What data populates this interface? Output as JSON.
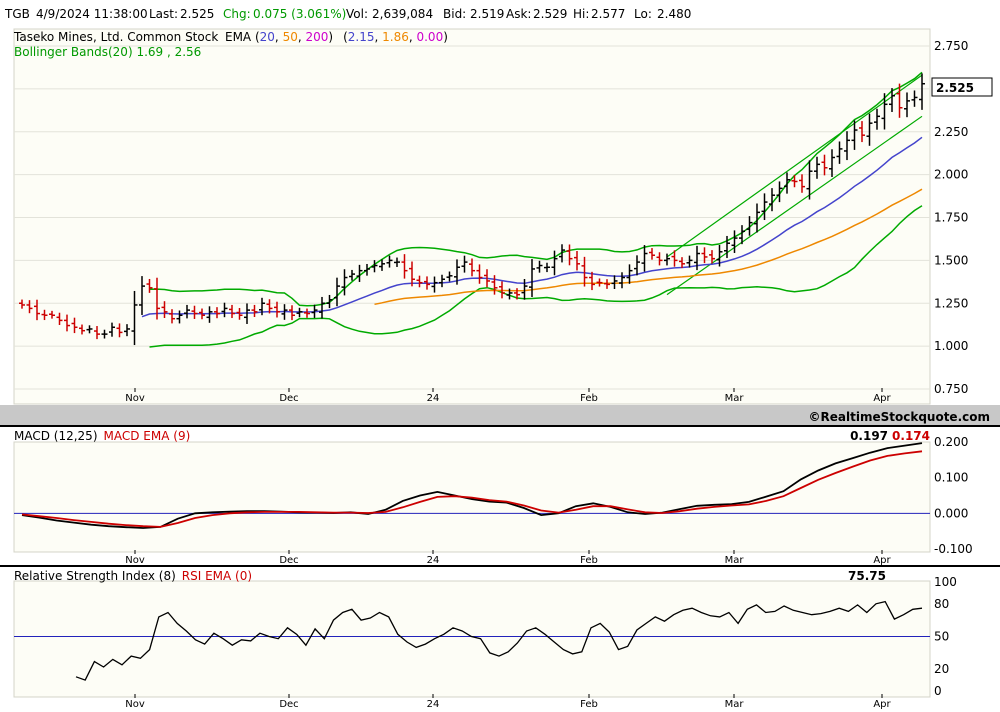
{
  "header": {
    "symbol": "TGB",
    "datetime": "4/9/2024 11:38:00",
    "last_label": "Last:",
    "last_value": "2.525",
    "chg_label": "Chg:",
    "chg_value": "0.075 (3.061%)",
    "vol_label": "Vol:",
    "vol_value": "2,639,084",
    "bid_label": "Bid:",
    "bid_value": "2.519",
    "ask_label": "Ask:",
    "ask_value": "2.529",
    "hi_label": "Hi:",
    "hi_value": "2.577",
    "lo_label": "Lo:",
    "lo_value": "2.480"
  },
  "price_panel": {
    "company": "Taseko Mines, Ltd. Common Stock",
    "ema_label": "EMA (",
    "ema_periods": [
      "20",
      "50",
      "200"
    ],
    "ema_close": ")",
    "ema_values_open": "(",
    "ema_values": [
      "2.15",
      "1.86",
      "0.00"
    ],
    "ema_values_close": ")",
    "bollinger_label": "Bollinger Bands(20) 1.69 , 2.56",
    "last_price_tag": "2.525",
    "yticks": [
      "2.750",
      "2.500",
      "2.250",
      "2.000",
      "1.750",
      "1.500",
      "1.250",
      "1.000",
      "0.750"
    ]
  },
  "xticks": [
    "Nov",
    "Dec",
    "24",
    "Feb",
    "Mar",
    "Apr"
  ],
  "copyright": "©RealtimeStockquote.com",
  "macd_panel": {
    "label": "MACD (12,25)",
    "ema_label": "MACD EMA (9)",
    "value": "0.197",
    "ema_value": "0.174",
    "yticks": [
      "0.200",
      "0.100",
      "0.000",
      "-0.100"
    ]
  },
  "rsi_panel": {
    "label": "Relative Strength Index (8)",
    "ema_label": "RSI EMA (0)",
    "value": "75.75",
    "yticks": [
      "100",
      "80",
      "50",
      "20",
      "0"
    ]
  },
  "colors": {
    "up": "#000000",
    "down": "#cc0000",
    "ema20": "#4444cc",
    "ema50": "#ee8800",
    "ema200": "#cc00cc",
    "bollinger": "#00aa00",
    "macd": "#000000",
    "macd_ema": "#cc0000",
    "rsi": "#000000",
    "ref_line": "#2222bb",
    "panel_bg": "#fdfdf6",
    "separator": "#c8c8c8"
  },
  "chart_data": [
    {
      "type": "candlestick",
      "title": "Taseko Mines, Ltd. Common Stock",
      "x_ticks": [
        "Nov",
        "Dec",
        "24",
        "Feb",
        "Mar",
        "Apr"
      ],
      "ylim": [
        0.75,
        2.75
      ],
      "close": [
        1.24,
        1.22,
        1.19,
        1.18,
        1.18,
        1.15,
        1.12,
        1.11,
        1.09,
        1.1,
        1.07,
        1.07,
        1.11,
        1.08,
        1.1,
        1.24,
        1.35,
        1.34,
        1.22,
        1.2,
        1.16,
        1.18,
        1.21,
        1.19,
        1.18,
        1.2,
        1.19,
        1.22,
        1.19,
        1.18,
        1.21,
        1.2,
        1.25,
        1.22,
        1.2,
        1.21,
        1.18,
        1.2,
        1.19,
        1.21,
        1.25,
        1.27,
        1.35,
        1.4,
        1.42,
        1.44,
        1.45,
        1.47,
        1.48,
        1.5,
        1.49,
        1.44,
        1.39,
        1.37,
        1.36,
        1.37,
        1.39,
        1.41,
        1.46,
        1.49,
        1.44,
        1.4,
        1.38,
        1.34,
        1.31,
        1.31,
        1.3,
        1.35,
        1.45,
        1.47,
        1.46,
        1.51,
        1.56,
        1.51,
        1.48,
        1.4,
        1.36,
        1.37,
        1.36,
        1.38,
        1.4,
        1.44,
        1.49,
        1.54,
        1.53,
        1.5,
        1.51,
        1.5,
        1.48,
        1.5,
        1.54,
        1.52,
        1.51,
        1.55,
        1.6,
        1.63,
        1.67,
        1.72,
        1.78,
        1.84,
        1.88,
        1.92,
        1.97,
        1.96,
        1.93,
        2.02,
        2.06,
        2.04,
        2.1,
        2.15,
        2.2,
        2.26,
        2.23,
        2.3,
        2.34,
        2.41,
        2.46,
        2.39,
        2.43,
        2.45,
        2.53
      ],
      "ema": [
        {
          "period": "20",
          "current": "2.15"
        },
        {
          "period": "50",
          "current": "1.86"
        },
        {
          "period": "200",
          "current": "0.00"
        }
      ],
      "bollinger": {
        "label": "Bollinger Bands(20)",
        "lower": "1.69",
        "upper": "2.56"
      },
      "last": 2.525
    },
    {
      "type": "line",
      "title": "MACD (12,25)",
      "ylim": [
        -0.1,
        0.2
      ],
      "series": [
        {
          "name": "MACD (12,25)",
          "values": [
            -0.005,
            -0.012,
            -0.02,
            -0.026,
            -0.032,
            -0.036,
            -0.039,
            -0.041,
            -0.038,
            -0.015,
            0.0,
            0.003,
            0.005,
            0.006,
            0.006,
            0.005,
            0.003,
            0.002,
            0.001,
            0.003,
            -0.002,
            0.01,
            0.035,
            0.05,
            0.06,
            0.05,
            0.04,
            0.033,
            0.03,
            0.015,
            -0.005,
            0.0,
            0.02,
            0.028,
            0.018,
            0.003,
            -0.002,
            0.002,
            0.012,
            0.021,
            0.024,
            0.026,
            0.032,
            0.047,
            0.062,
            0.095,
            0.12,
            0.14,
            0.155,
            0.17,
            0.183,
            0.19,
            0.197
          ]
        },
        {
          "name": "MACD EMA (9)",
          "values": [
            -0.003,
            -0.008,
            -0.013,
            -0.019,
            -0.024,
            -0.029,
            -0.033,
            -0.036,
            -0.038,
            -0.027,
            -0.013,
            -0.005,
            0.0,
            0.003,
            0.004,
            0.004,
            0.004,
            0.003,
            0.002,
            0.002,
            0.001,
            0.004,
            0.017,
            0.032,
            0.046,
            0.048,
            0.044,
            0.037,
            0.033,
            0.022,
            0.008,
            0.002,
            0.01,
            0.02,
            0.02,
            0.011,
            0.003,
            0.001,
            0.006,
            0.013,
            0.018,
            0.022,
            0.025,
            0.035,
            0.048,
            0.071,
            0.094,
            0.113,
            0.131,
            0.148,
            0.161,
            0.168,
            0.174
          ]
        }
      ]
    },
    {
      "type": "line",
      "title": "Relative Strength Index (8)",
      "ylim": [
        0,
        100
      ],
      "series": [
        {
          "name": "Relative Strength Index (8)",
          "values": [
            13,
            10,
            27,
            22,
            29,
            24,
            32,
            30,
            38,
            68,
            72,
            62,
            55,
            47,
            43,
            53,
            48,
            42,
            47,
            46,
            53,
            50,
            48,
            58,
            52,
            42,
            57,
            48,
            65,
            72,
            75,
            65,
            67,
            72,
            68,
            52,
            45,
            40,
            43,
            48,
            52,
            58,
            55,
            50,
            48,
            35,
            32,
            36,
            44,
            55,
            58,
            52,
            45,
            38,
            34,
            36,
            58,
            62,
            54,
            38,
            41,
            56,
            62,
            68,
            64,
            70,
            74,
            76,
            72,
            69,
            68,
            72,
            62,
            75,
            79,
            72,
            73,
            78,
            74,
            72,
            70,
            71,
            73,
            76,
            73,
            79,
            72,
            80,
            82,
            66,
            70,
            75,
            76
          ]
        }
      ],
      "reference_lines": [
        50
      ],
      "last": 75.75
    }
  ]
}
